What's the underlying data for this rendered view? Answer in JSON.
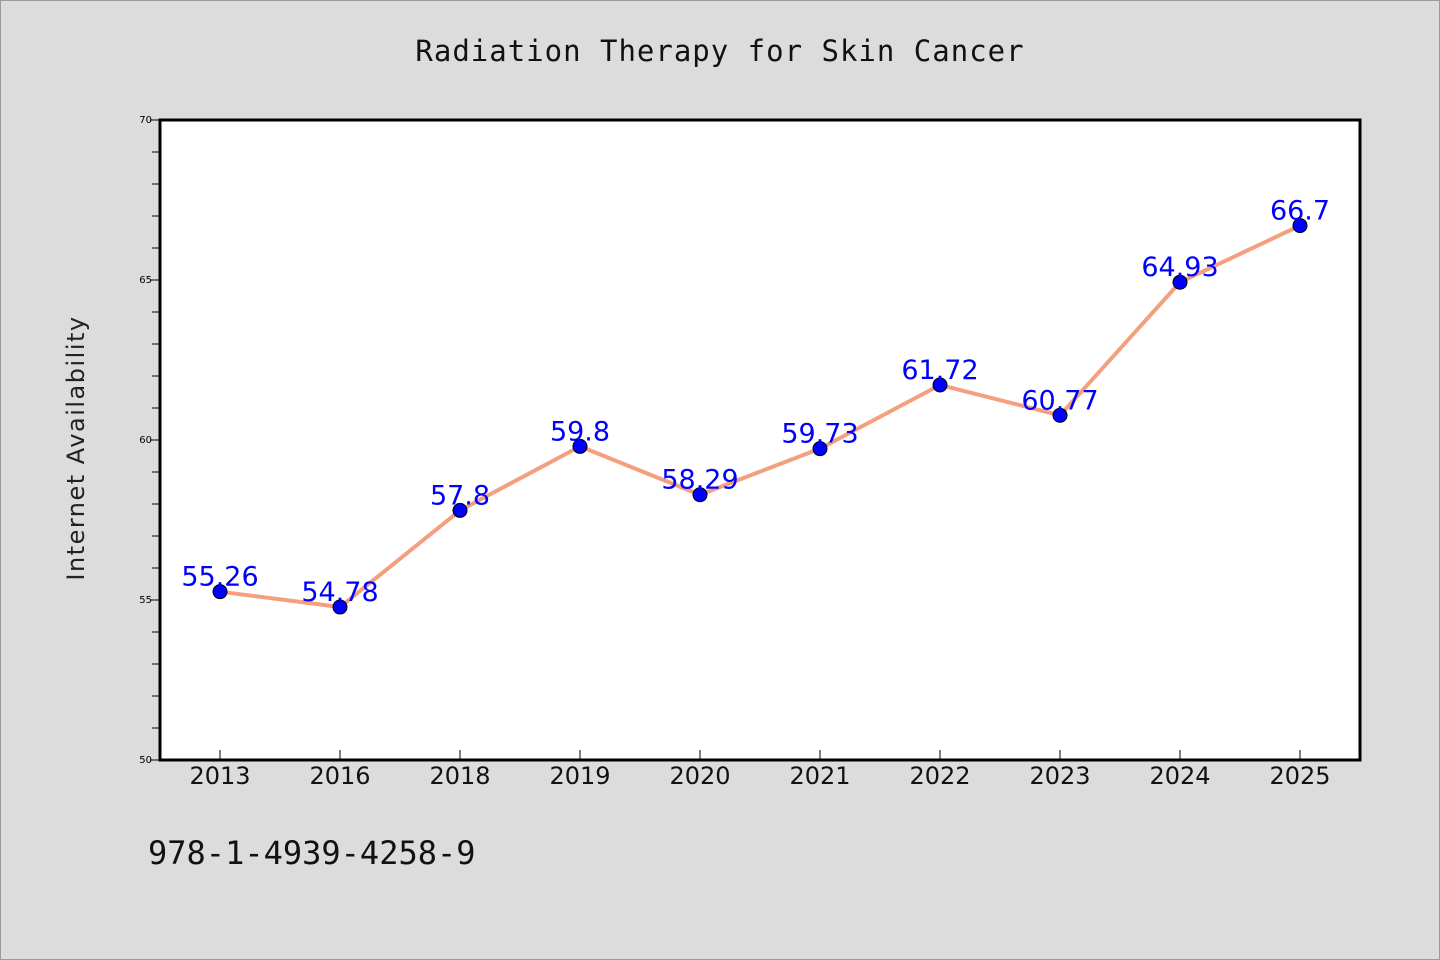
{
  "chart_data": {
    "type": "line",
    "title": "Radiation Therapy for Skin Cancer",
    "xlabel": "",
    "ylabel": "Internet Availability",
    "categories": [
      "2013",
      "2016",
      "2018",
      "2019",
      "2020",
      "2021",
      "2022",
      "2023",
      "2024",
      "2025"
    ],
    "series": [
      {
        "values": [
          55.26,
          54.78,
          57.8,
          59.8,
          58.29,
          59.73,
          61.72,
          60.77,
          64.93,
          66.7
        ]
      }
    ],
    "data_labels": [
      "55.26",
      "54.78",
      "57.8",
      "59.8",
      "58.29",
      "59.73",
      "61.72",
      "60.77",
      "64.93",
      "66.7"
    ],
    "ylim": [
      50,
      70
    ],
    "yticks": [
      "50",
      "55",
      "60",
      "65",
      "70"
    ],
    "grid": false,
    "line_color": "#f4a07e",
    "marker_color": "#0000ff",
    "label_color": "#0000ff"
  },
  "footer": {
    "code": "978-1-4939-4258-9"
  }
}
